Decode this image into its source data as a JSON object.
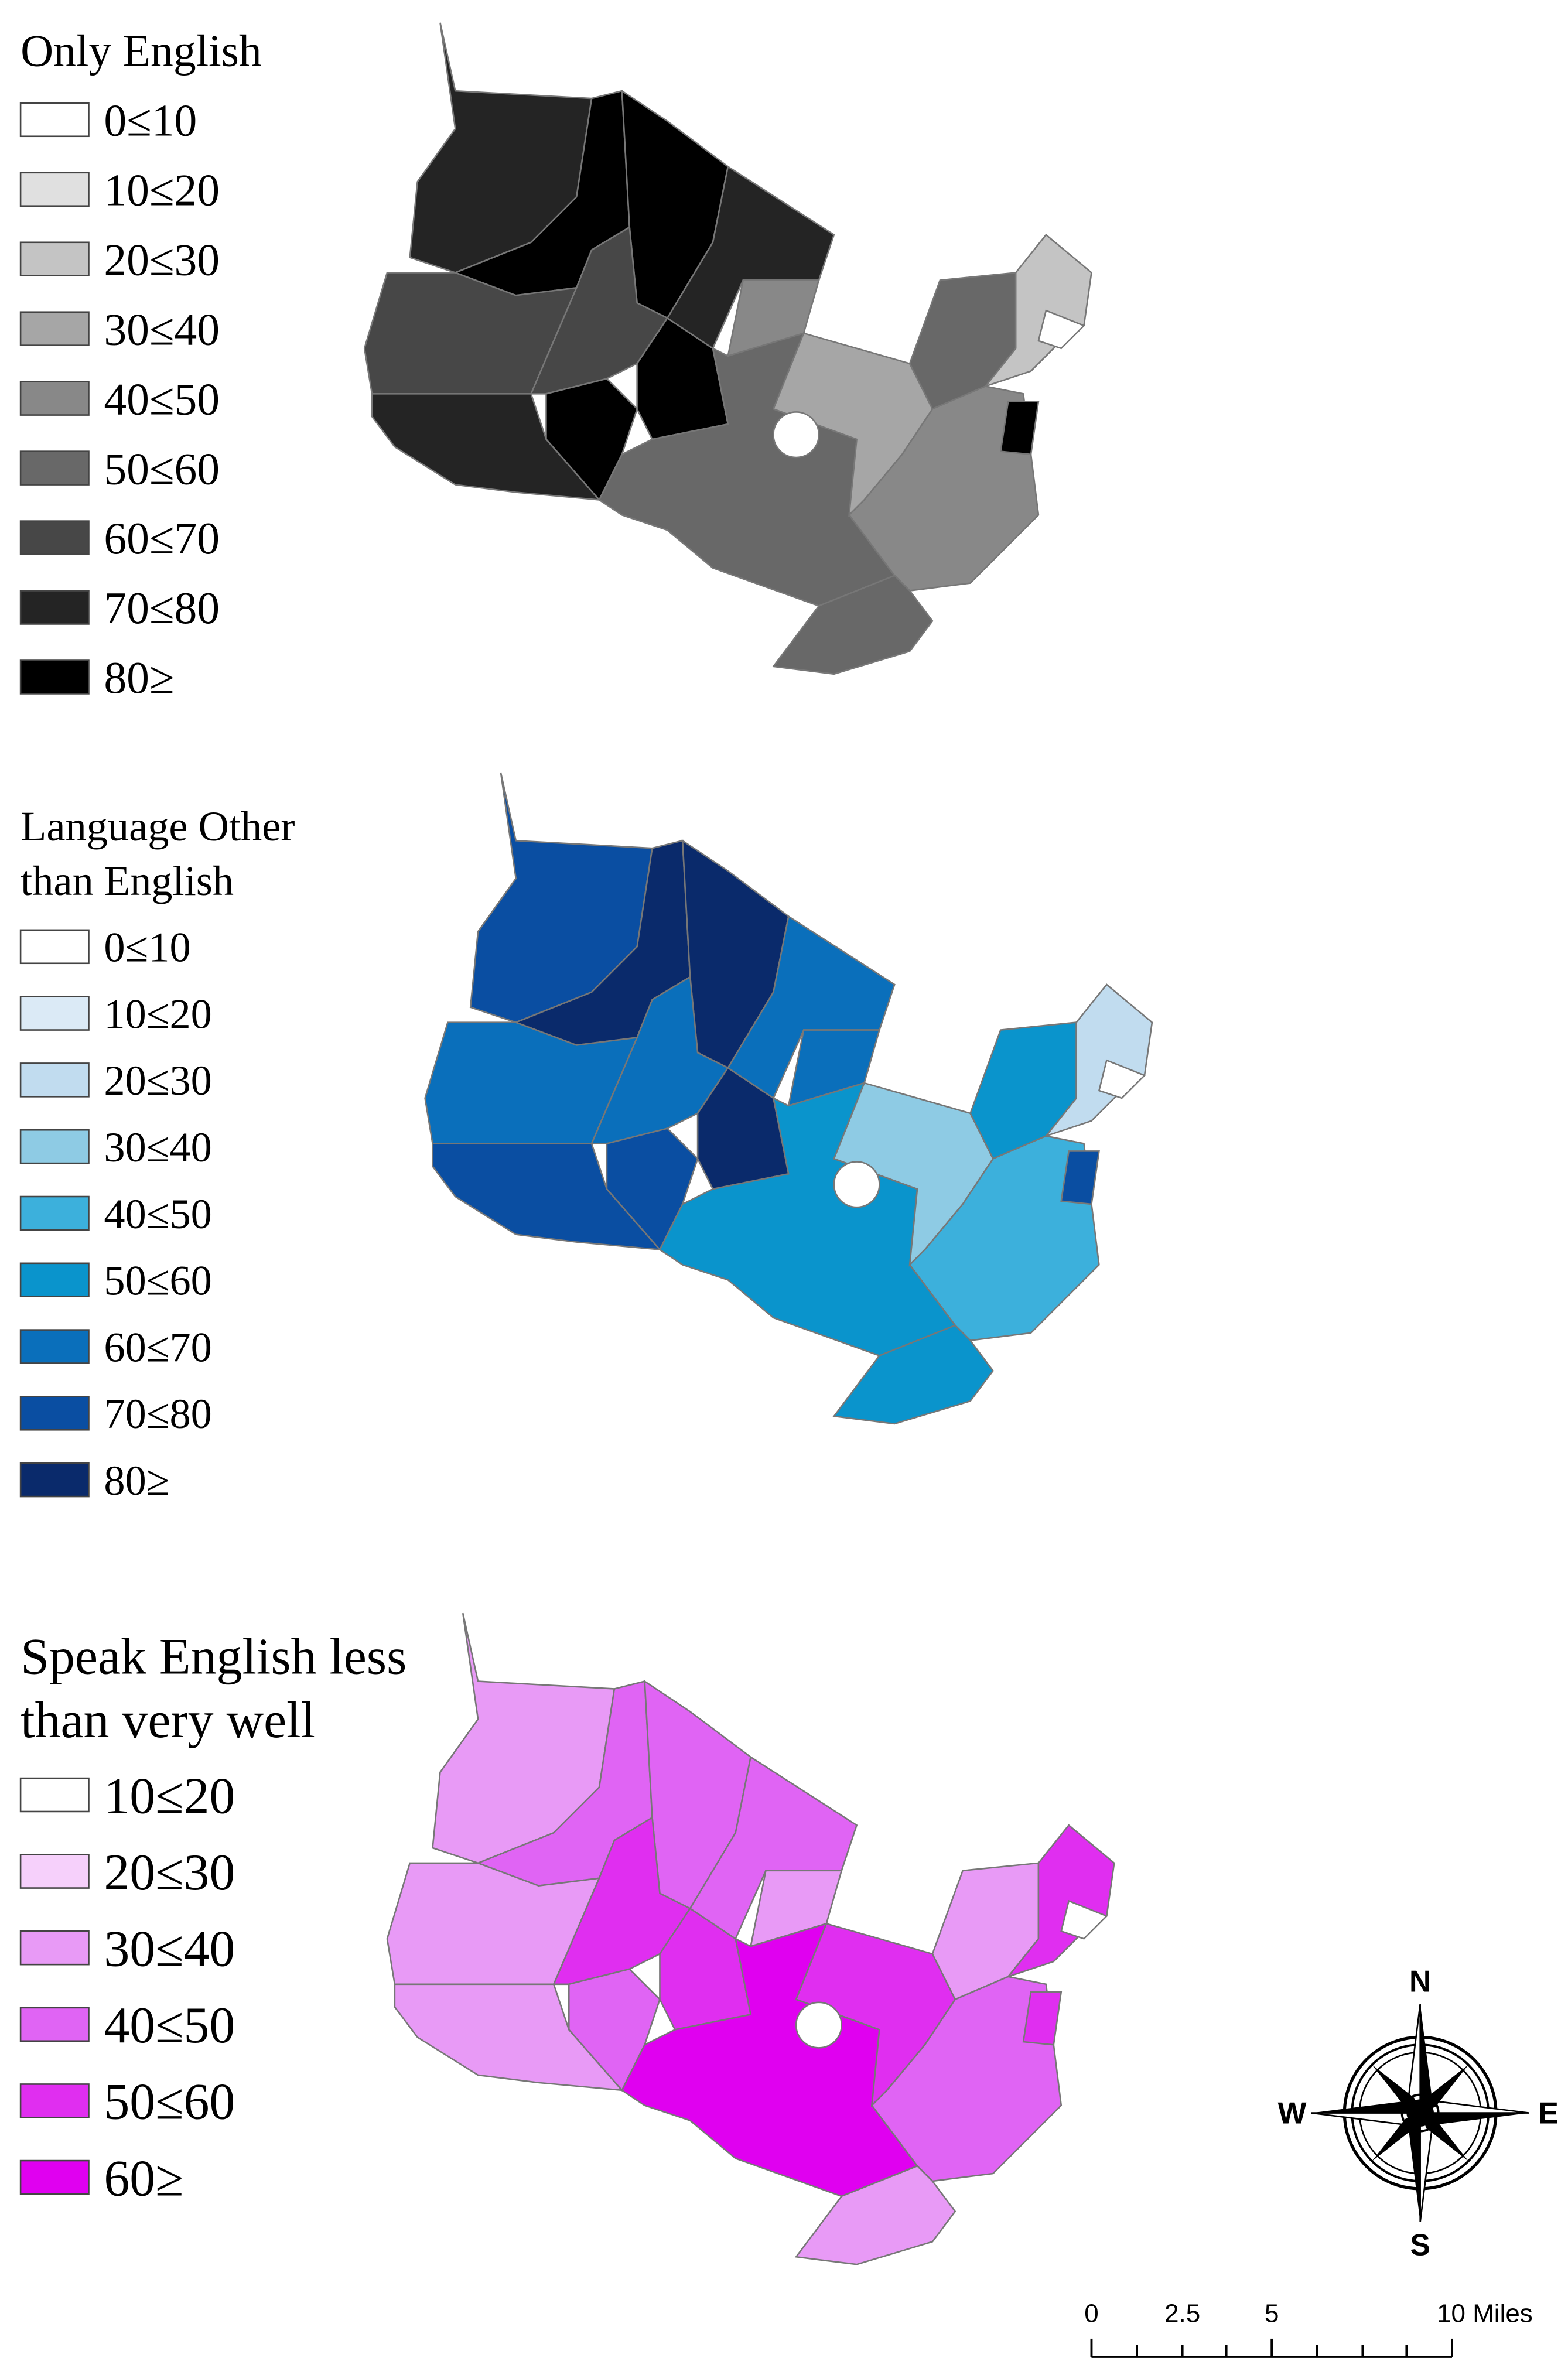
{
  "maps": [
    {
      "title_lines": [
        "Only English"
      ],
      "legend": [
        {
          "label": "0≤10",
          "color": "#ffffff"
        },
        {
          "label": "10≤20",
          "color": "#e0e0e0"
        },
        {
          "label": "20≤30",
          "color": "#c4c4c4"
        },
        {
          "label": "30≤40",
          "color": "#a6a6a6"
        },
        {
          "label": "40≤50",
          "color": "#888888"
        },
        {
          "label": "50≤60",
          "color": "#686868"
        },
        {
          "label": "60≤70",
          "color": "#474747"
        },
        {
          "label": "70≤80",
          "color": "#242424"
        },
        {
          "label": "80≥",
          "color": "#000000"
        }
      ]
    },
    {
      "title_lines": [
        "Language Other",
        "than English"
      ],
      "legend": [
        {
          "label": "0≤10",
          "color": "#ffffff"
        },
        {
          "label": "10≤20",
          "color": "#dbeaf6"
        },
        {
          "label": "20≤30",
          "color": "#c1dcef"
        },
        {
          "label": "30≤40",
          "color": "#8ecbe4"
        },
        {
          "label": "40≤50",
          "color": "#3cb0dc"
        },
        {
          "label": "50≤60",
          "color": "#0a94cc"
        },
        {
          "label": "60≤70",
          "color": "#0a6fbb"
        },
        {
          "label": "70≤80",
          "color": "#0a4ea2"
        },
        {
          "label": "80≥",
          "color": "#0a2a6b"
        }
      ]
    },
    {
      "title_lines": [
        "Speak English less",
        "than very well"
      ],
      "legend": [
        {
          "label": "10≤20",
          "color": "#ffffff"
        },
        {
          "label": "20≤30",
          "color": "#f6d0fb"
        },
        {
          "label": "30≤40",
          "color": "#e89af6"
        },
        {
          "label": "40≤50",
          "color": "#e064f4"
        },
        {
          "label": "50≤60",
          "color": "#e02ef0"
        },
        {
          "label": "60≥",
          "color": "#e000f0"
        }
      ]
    }
  ],
  "compass": {
    "north": "N",
    "south": "S",
    "east": "E",
    "west": "W"
  },
  "scale_bar": {
    "labels": [
      "0",
      "2.5",
      "5",
      "10 Miles"
    ]
  }
}
